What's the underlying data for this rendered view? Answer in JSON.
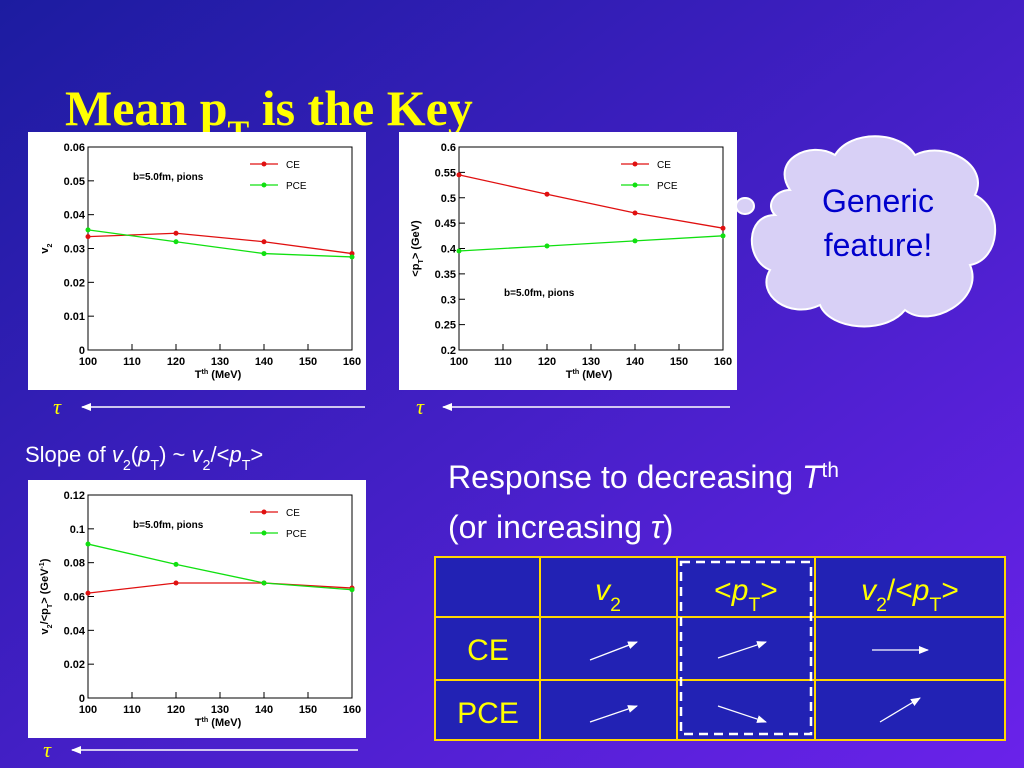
{
  "title": [
    {
      "text": "Mean p"
    },
    {
      "text": "T",
      "shift": "sub"
    },
    {
      "text": " is the Key"
    }
  ],
  "chart_data": [
    {
      "type": "line",
      "annotation": "b=5.0fm, pions",
      "legend": "upper right",
      "x_label": [
        {
          "text": "T"
        },
        {
          "text": "th",
          "shift": "super"
        },
        {
          "text": " (MeV)"
        }
      ],
      "y_label": [
        {
          "text": "v"
        },
        {
          "text": "2",
          "shift": "sub"
        }
      ],
      "x": [
        100,
        120,
        140,
        160
      ],
      "xlim": [
        100,
        160
      ],
      "xticks": [
        100,
        110,
        120,
        130,
        140,
        150,
        160
      ],
      "ylim": [
        0,
        0.06
      ],
      "yticks": [
        0,
        0.01,
        0.02,
        0.03,
        0.04,
        0.05,
        0.06
      ],
      "series": [
        {
          "name": "CE",
          "color": "#e01010",
          "values": [
            0.0335,
            0.0345,
            0.032,
            0.0285
          ]
        },
        {
          "name": "PCE",
          "color": "#10e010",
          "values": [
            0.0355,
            0.032,
            0.0285,
            0.0275
          ]
        }
      ]
    },
    {
      "type": "line",
      "annotation": "b=5.0fm, pions",
      "legend": "upper right",
      "x_label": [
        {
          "text": "T"
        },
        {
          "text": "th",
          "shift": "super"
        },
        {
          "text": " (MeV)"
        }
      ],
      "y_label": [
        {
          "text": "<p"
        },
        {
          "text": "T",
          "shift": "sub"
        },
        {
          "text": "> (GeV)"
        }
      ],
      "x": [
        100,
        120,
        140,
        160
      ],
      "xlim": [
        100,
        160
      ],
      "xticks": [
        100,
        110,
        120,
        130,
        140,
        150,
        160
      ],
      "ylim": [
        0.2,
        0.6
      ],
      "yticks": [
        0.2,
        0.25,
        0.3,
        0.35,
        0.4,
        0.45,
        0.5,
        0.55,
        0.6
      ],
      "series": [
        {
          "name": "CE",
          "color": "#e01010",
          "values": [
            0.545,
            0.507,
            0.47,
            0.44
          ]
        },
        {
          "name": "PCE",
          "color": "#10e010",
          "values": [
            0.395,
            0.405,
            0.415,
            0.425
          ]
        }
      ]
    },
    {
      "type": "line",
      "annotation": "b=5.0fm, pions",
      "legend": "upper right",
      "x_label": [
        {
          "text": "T"
        },
        {
          "text": "th",
          "shift": "super"
        },
        {
          "text": " (MeV)"
        }
      ],
      "y_label": [
        {
          "text": "v"
        },
        {
          "text": "2",
          "shift": "sub"
        },
        {
          "text": "/<p"
        },
        {
          "text": "T",
          "shift": "sub"
        },
        {
          "text": "> (GeV"
        },
        {
          "text": "-1",
          "shift": "super"
        },
        {
          "text": ")"
        }
      ],
      "x": [
        100,
        120,
        140,
        160
      ],
      "xlim": [
        100,
        160
      ],
      "xticks": [
        100,
        110,
        120,
        130,
        140,
        150,
        160
      ],
      "ylim": [
        0,
        0.12
      ],
      "yticks": [
        0,
        0.02,
        0.04,
        0.06,
        0.08,
        0.1,
        0.12
      ],
      "series": [
        {
          "name": "CE",
          "color": "#e01010",
          "values": [
            0.062,
            0.068,
            0.068,
            0.065
          ]
        },
        {
          "name": "PCE",
          "color": "#10e010",
          "values": [
            0.091,
            0.079,
            0.068,
            0.064
          ]
        }
      ]
    }
  ],
  "tau": [
    "τ",
    "τ",
    "τ"
  ],
  "slope": [
    {
      "text": "Slope of "
    },
    {
      "text": "v",
      "italic": true
    },
    {
      "text": "2",
      "shift": "sub"
    },
    {
      "text": "("
    },
    {
      "text": "p",
      "italic": true
    },
    {
      "text": "T",
      "shift": "sub"
    },
    {
      "text": ") ~ "
    },
    {
      "text": "v",
      "italic": true
    },
    {
      "text": "2",
      "shift": "sub"
    },
    {
      "text": "/<"
    },
    {
      "text": "p",
      "italic": true
    },
    {
      "text": "T",
      "shift": "sub"
    },
    {
      "text": ">"
    }
  ],
  "cloud": [
    "Generic",
    "feature!"
  ],
  "response": [
    [
      {
        "text": "Response to decreasing "
      },
      {
        "text": "T",
        "italic": true
      },
      {
        "text": "th",
        "shift": "super"
      }
    ],
    [
      {
        "text": "(or increasing "
      },
      {
        "text": "τ",
        "italic": true
      },
      {
        "text": ")"
      }
    ]
  ],
  "table": {
    "header": [
      [
        {
          "text": "v",
          "italic": true
        },
        {
          "text": "2",
          "shift": "sub"
        }
      ],
      [
        {
          "text": "<"
        },
        {
          "text": "p",
          "italic": true
        },
        {
          "text": "T",
          "shift": "sub"
        },
        {
          "text": ">"
        }
      ],
      [
        {
          "text": "v",
          "italic": true
        },
        {
          "text": "2",
          "shift": "sub"
        },
        {
          "text": "/<"
        },
        {
          "text": "p",
          "italic": true
        },
        {
          "text": "T",
          "shift": "sub"
        },
        {
          "text": ">"
        }
      ]
    ],
    "rows": [
      "CE",
      "PCE"
    ]
  }
}
